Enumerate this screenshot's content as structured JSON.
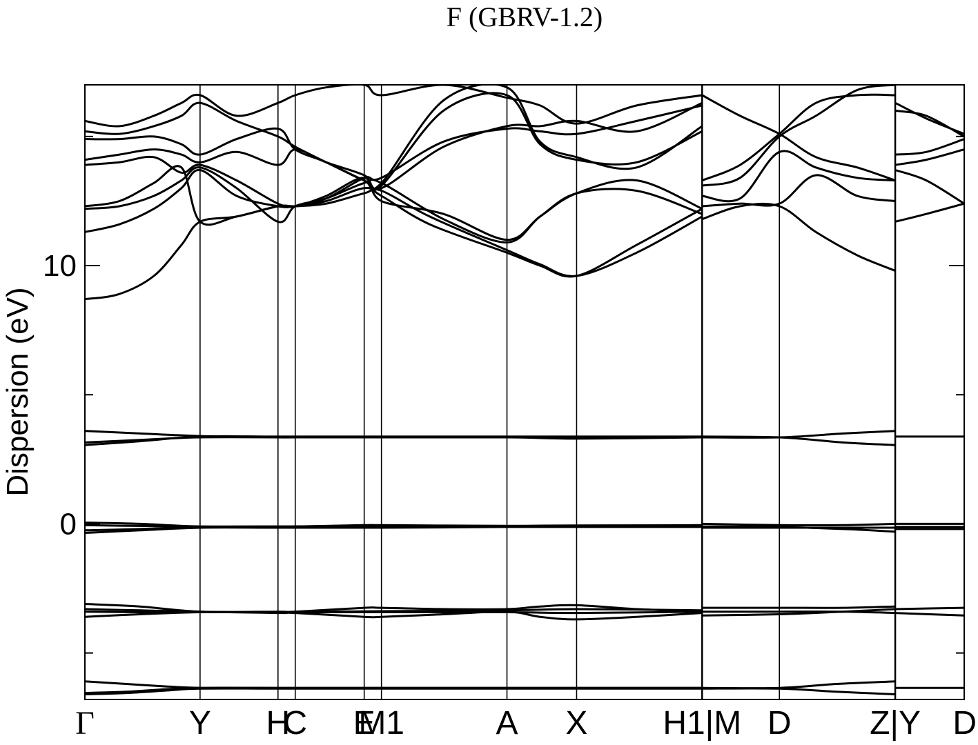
{
  "chart_data": {
    "type": "line",
    "title": "F (GBRV-1.2)",
    "xlabel": "",
    "ylabel": "Dispersion (eV)",
    "ylim": [
      -6.8,
      17.0
    ],
    "xlim": [
      0,
      12.75
    ],
    "yticks_major": [
      0,
      10
    ],
    "yticks_minor": [
      -5,
      5,
      15
    ],
    "grid": false,
    "legend": "none",
    "line_color": "#000000",
    "kpoints": [
      {
        "label": "Γ",
        "x": 0.0
      },
      {
        "label": "Y",
        "x": 1.67
      },
      {
        "label": "H",
        "x": 2.8
      },
      {
        "label": "C",
        "x": 3.05
      },
      {
        "label": "E",
        "x": 4.05
      },
      {
        "label": "M1",
        "x": 4.3
      },
      {
        "label": "A",
        "x": 6.12
      },
      {
        "label": "X",
        "x": 7.13
      },
      {
        "label": "H1|M",
        "x": 8.95
      },
      {
        "label": "D",
        "x": 10.07
      },
      {
        "label": "Z|Y",
        "x": 11.75
      },
      {
        "label": "D",
        "x": 12.75
      }
    ],
    "segment_breaks": [
      8.95,
      11.75
    ],
    "series": [
      {
        "x": [
          0,
          0.6,
          1.2,
          1.67,
          2.2,
          2.8,
          3.05,
          3.5,
          4.05,
          4.3,
          5.2,
          6.12,
          6.6,
          7.13,
          8.0,
          8.95
        ],
        "values": [
          -6.1,
          -6.2,
          -6.3,
          -6.35,
          -6.35,
          -6.35,
          -6.35,
          -6.35,
          -6.35,
          -6.35,
          -6.35,
          -6.35,
          -6.35,
          -6.35,
          -6.35,
          -6.35
        ]
      },
      {
        "x": [
          0,
          0.6,
          1.2,
          1.67,
          2.8,
          4.3,
          6.12,
          7.13,
          8.95
        ],
        "values": [
          -6.55,
          -6.5,
          -6.4,
          -6.35,
          -6.35,
          -6.35,
          -6.35,
          -6.35,
          -6.35
        ]
      },
      {
        "x": [
          0,
          0.6,
          1.2,
          1.67,
          2.8,
          4.3,
          6.12,
          7.13,
          8.95
        ],
        "values": [
          -6.6,
          -6.55,
          -6.45,
          -6.38,
          -6.38,
          -6.38,
          -6.38,
          -6.38,
          -6.38
        ]
      },
      {
        "x": [
          8.95,
          10.07,
          10.9,
          11.75
        ],
        "values": [
          -6.35,
          -6.35,
          -6.2,
          -6.1
        ]
      },
      {
        "x": [
          8.95,
          10.07,
          10.9,
          11.75
        ],
        "values": [
          -6.38,
          -6.38,
          -6.5,
          -6.6
        ]
      },
      {
        "x": [
          11.75,
          12.75
        ],
        "values": [
          -6.35,
          -6.35
        ]
      },
      {
        "x": [
          0,
          0.8,
          1.67,
          2.8,
          3.05,
          4.05,
          4.3,
          5.2,
          6.12,
          6.6,
          7.13,
          8.0,
          8.95
        ],
        "values": [
          -3.1,
          -3.2,
          -3.4,
          -3.4,
          -3.4,
          -3.25,
          -3.25,
          -3.3,
          -3.3,
          -3.2,
          -3.15,
          -3.3,
          -3.4
        ]
      },
      {
        "x": [
          0,
          0.8,
          1.67,
          2.8,
          3.05,
          4.05,
          4.3,
          5.2,
          6.12,
          6.6,
          7.13,
          8.0,
          8.95
        ],
        "values": [
          -3.3,
          -3.35,
          -3.4,
          -3.45,
          -3.45,
          -3.6,
          -3.6,
          -3.5,
          -3.4,
          -3.6,
          -3.7,
          -3.6,
          -3.45
        ]
      },
      {
        "x": [
          0,
          0.8,
          1.67,
          2.8,
          4.3,
          6.12,
          7.13,
          8.95
        ],
        "values": [
          -3.4,
          -3.42,
          -3.42,
          -3.42,
          -3.38,
          -3.35,
          -3.3,
          -3.35
        ]
      },
      {
        "x": [
          0,
          0.8,
          1.67,
          2.8,
          4.3,
          6.12,
          7.13,
          8.95
        ],
        "values": [
          -3.6,
          -3.5,
          -3.42,
          -3.42,
          -3.42,
          -3.42,
          -3.45,
          -3.4
        ]
      },
      {
        "x": [
          8.95,
          10.07,
          11.0,
          11.75
        ],
        "values": [
          -3.25,
          -3.25,
          -3.25,
          -3.2
        ]
      },
      {
        "x": [
          8.95,
          10.07,
          11.0,
          11.75
        ],
        "values": [
          -3.55,
          -3.5,
          -3.4,
          -3.3
        ]
      },
      {
        "x": [
          8.95,
          10.07,
          11.0,
          11.75
        ],
        "values": [
          -3.4,
          -3.4,
          -3.4,
          -3.45
        ]
      },
      {
        "x": [
          11.75,
          12.75
        ],
        "values": [
          -3.3,
          -3.25
        ]
      },
      {
        "x": [
          11.75,
          12.75
        ],
        "values": [
          -3.45,
          -3.55
        ]
      },
      {
        "x": [
          0,
          0.8,
          1.67,
          2.8,
          3.05,
          4.05,
          4.3,
          6.12,
          7.13,
          8.95
        ],
        "values": [
          0.05,
          0.0,
          -0.1,
          -0.1,
          -0.1,
          -0.05,
          -0.05,
          -0.08,
          -0.08,
          -0.05
        ]
      },
      {
        "x": [
          0,
          0.8,
          1.67,
          2.8,
          3.05,
          4.05,
          4.3,
          6.12,
          7.13,
          8.95
        ],
        "values": [
          -0.25,
          -0.2,
          -0.12,
          -0.12,
          -0.12,
          -0.1,
          -0.1,
          -0.1,
          -0.1,
          -0.1
        ]
      },
      {
        "x": [
          0,
          0.8,
          1.67,
          2.8,
          4.3,
          6.12,
          7.13,
          8.95
        ],
        "values": [
          -0.35,
          -0.25,
          -0.15,
          -0.15,
          -0.15,
          -0.12,
          -0.12,
          -0.12
        ]
      },
      {
        "x": [
          0,
          0.8,
          1.67,
          2.8,
          4.3,
          6.12,
          7.13,
          8.95
        ],
        "values": [
          -0.05,
          -0.08,
          -0.1,
          -0.1,
          -0.08,
          -0.08,
          -0.06,
          -0.06
        ]
      },
      {
        "x": [
          8.95,
          10.07,
          11.0,
          11.75
        ],
        "values": [
          0.0,
          -0.05,
          -0.05,
          0.0
        ]
      },
      {
        "x": [
          8.95,
          10.07,
          11.0,
          11.75
        ],
        "values": [
          -0.1,
          -0.12,
          -0.2,
          -0.3
        ]
      },
      {
        "x": [
          8.95,
          10.07,
          11.75
        ],
        "values": [
          -0.15,
          -0.15,
          -0.15
        ]
      },
      {
        "x": [
          11.75,
          12.75
        ],
        "values": [
          0.0,
          0.0
        ]
      },
      {
        "x": [
          11.75,
          12.75
        ],
        "values": [
          -0.12,
          -0.12
        ]
      },
      {
        "x": [
          11.75,
          12.75
        ],
        "values": [
          -0.2,
          -0.2
        ]
      },
      {
        "x": [
          0,
          0.8,
          1.67,
          2.8,
          3.05,
          4.05,
          4.3,
          6.12,
          7.13,
          8.95
        ],
        "values": [
          3.6,
          3.5,
          3.4,
          3.35,
          3.35,
          3.35,
          3.35,
          3.35,
          3.35,
          3.35
        ]
      },
      {
        "x": [
          0,
          0.8,
          1.67,
          2.8,
          3.05,
          4.05,
          4.3,
          6.12,
          7.13,
          8.95
        ],
        "values": [
          3.15,
          3.25,
          3.35,
          3.35,
          3.35,
          3.35,
          3.35,
          3.35,
          3.3,
          3.35
        ]
      },
      {
        "x": [
          0,
          0.8,
          1.67,
          2.8,
          4.3,
          6.12,
          7.13,
          8.95
        ],
        "values": [
          3.05,
          3.2,
          3.38,
          3.38,
          3.38,
          3.38,
          3.38,
          3.38
        ]
      },
      {
        "x": [
          8.95,
          10.07,
          11.0,
          11.75
        ],
        "values": [
          3.35,
          3.35,
          3.5,
          3.6
        ]
      },
      {
        "x": [
          8.95,
          10.07,
          11.0,
          11.75
        ],
        "values": [
          3.38,
          3.35,
          3.15,
          3.05
        ]
      },
      {
        "x": [
          11.75,
          12.75
        ],
        "values": [
          3.38,
          3.38
        ]
      },
      {
        "x": [
          0,
          0.5,
          1.0,
          1.4,
          1.67,
          2.2,
          2.8,
          3.05,
          3.5,
          4.05,
          4.3,
          5.0,
          6.12,
          6.6,
          7.13,
          8.0,
          8.95
        ],
        "values": [
          8.7,
          8.9,
          9.6,
          10.8,
          11.7,
          11.9,
          12.3,
          12.3,
          12.4,
          12.8,
          12.9,
          11.9,
          10.6,
          10.05,
          9.6,
          10.5,
          11.9
        ]
      },
      {
        "x": [
          0,
          0.5,
          1.0,
          1.4,
          1.67,
          2.2,
          2.8,
          3.05,
          3.5,
          4.05,
          4.3,
          5.0,
          6.12,
          6.6,
          7.13,
          8.0,
          8.95
        ],
        "values": [
          11.3,
          11.6,
          12.2,
          13.0,
          13.7,
          12.7,
          12.3,
          12.3,
          12.5,
          13.0,
          12.7,
          11.6,
          10.5,
          10.0,
          9.6,
          10.8,
          12.2
        ]
      },
      {
        "x": [
          0,
          0.5,
          1.0,
          1.4,
          1.67,
          2.2,
          2.8,
          3.05,
          3.5,
          4.05,
          4.3,
          5.2,
          6.12,
          6.6,
          7.13,
          8.0,
          8.95
        ],
        "values": [
          12.2,
          12.3,
          12.7,
          13.3,
          13.8,
          13.0,
          11.7,
          12.3,
          12.6,
          13.2,
          13.2,
          11.8,
          10.9,
          11.9,
          12.8,
          12.9,
          12.0
        ]
      },
      {
        "x": [
          0,
          0.5,
          1.0,
          1.4,
          1.67,
          2.2,
          2.8,
          3.05,
          3.5,
          4.05,
          4.3,
          5.2,
          6.12,
          6.6,
          7.13,
          8.0,
          8.95
        ],
        "values": [
          12.3,
          12.5,
          13.2,
          13.8,
          11.7,
          11.9,
          12.3,
          12.3,
          12.7,
          13.4,
          12.5,
          12.0,
          11.0,
          11.9,
          12.8,
          13.3,
          12.2
        ]
      },
      {
        "x": [
          0,
          0.5,
          1.0,
          1.4,
          1.67,
          2.2,
          2.8,
          3.05,
          3.5,
          4.05,
          4.3,
          5.2,
          6.12,
          6.6,
          7.13,
          8.0,
          8.95
        ],
        "values": [
          13.9,
          14.0,
          14.2,
          13.6,
          13.9,
          13.3,
          12.4,
          12.3,
          12.6,
          13.4,
          13.4,
          14.8,
          15.3,
          15.2,
          15.1,
          15.6,
          16.2
        ]
      },
      {
        "x": [
          0,
          0.5,
          1.0,
          1.4,
          1.67,
          2.2,
          2.8,
          3.05,
          3.5,
          4.05,
          4.3,
          5.2,
          6.12,
          6.6,
          7.13,
          8.0,
          8.95
        ],
        "values": [
          14.1,
          14.3,
          14.5,
          14.3,
          14.0,
          14.4,
          13.9,
          14.5,
          14.0,
          13.5,
          13.0,
          14.6,
          15.4,
          15.4,
          15.6,
          15.2,
          16.3
        ]
      },
      {
        "x": [
          0,
          0.5,
          1.0,
          1.4,
          1.67,
          2.2,
          2.8,
          3.05,
          3.5,
          4.05,
          4.3,
          5.2,
          6.12,
          6.6,
          7.13,
          8.0,
          8.95
        ],
        "values": [
          14.9,
          14.9,
          15.0,
          14.7,
          14.3,
          14.9,
          15.3,
          14.5,
          14.0,
          13.3,
          13.1,
          16.0,
          16.6,
          14.7,
          14.1,
          14.0,
          15.2
        ]
      },
      {
        "x": [
          0,
          0.5,
          1.0,
          1.4,
          1.67,
          2.2,
          2.8,
          3.05,
          3.5,
          4.05,
          4.3,
          5.2,
          6.12,
          6.6,
          7.13,
          8.0,
          8.95
        ],
        "values": [
          15.2,
          15.1,
          15.4,
          15.8,
          16.3,
          15.6,
          15.0,
          14.6,
          14.0,
          13.3,
          13.2,
          16.4,
          16.9,
          14.8,
          14.2,
          13.8,
          15.4
        ]
      },
      {
        "x": [
          0,
          0.5,
          1.0,
          1.4,
          1.67,
          2.2,
          2.8,
          3.05,
          3.5,
          4.05,
          4.3,
          5.2,
          6.12,
          6.6,
          7.13,
          8.0,
          8.95
        ],
        "values": [
          15.6,
          15.4,
          15.8,
          16.3,
          16.6,
          15.8,
          16.3,
          16.6,
          16.9,
          17.0,
          16.6,
          17.0,
          16.5,
          16.2,
          15.5,
          16.2,
          16.6
        ]
      },
      {
        "x": [
          8.95,
          9.5,
          10.07,
          10.6,
          11.2,
          11.75
        ],
        "values": [
          11.8,
          12.3,
          12.3,
          11.3,
          10.4,
          9.8
        ]
      },
      {
        "x": [
          8.95,
          9.5,
          10.07,
          10.6,
          11.2,
          11.75
        ],
        "values": [
          12.3,
          12.4,
          12.4,
          13.5,
          12.7,
          12.5
        ]
      },
      {
        "x": [
          8.95,
          9.5,
          10.07,
          10.6,
          11.2,
          11.75
        ],
        "values": [
          12.7,
          12.6,
          14.4,
          13.8,
          13.4,
          13.3
        ]
      },
      {
        "x": [
          8.95,
          9.5,
          10.07,
          10.6,
          11.2,
          11.75
        ],
        "values": [
          13.1,
          13.4,
          15.0,
          15.8,
          16.8,
          17.0
        ]
      },
      {
        "x": [
          8.95,
          9.5,
          10.07,
          10.6,
          11.2,
          11.75
        ],
        "values": [
          13.3,
          13.9,
          15.1,
          16.3,
          16.6,
          16.6
        ]
      },
      {
        "x": [
          8.95,
          9.5,
          10.07,
          10.6,
          11.2,
          11.75
        ],
        "values": [
          16.6,
          15.8,
          15.1,
          14.2,
          13.8,
          13.3
        ]
      },
      {
        "x": [
          11.75,
          12.2,
          12.75
        ],
        "values": [
          11.7,
          12.0,
          12.4
        ]
      },
      {
        "x": [
          11.75,
          12.2,
          12.75
        ],
        "values": [
          13.7,
          13.3,
          12.4
        ]
      },
      {
        "x": [
          11.75,
          12.2,
          12.75
        ],
        "values": [
          13.9,
          14.1,
          14.5
        ]
      },
      {
        "x": [
          11.75,
          12.2,
          12.75
        ],
        "values": [
          14.3,
          14.4,
          14.9
        ]
      },
      {
        "x": [
          11.75,
          12.2,
          12.75
        ],
        "values": [
          16.3,
          15.7,
          15.1
        ]
      },
      {
        "x": [
          11.75,
          12.2,
          12.75
        ],
        "values": [
          16.0,
          15.8,
          15.0
        ]
      }
    ]
  }
}
